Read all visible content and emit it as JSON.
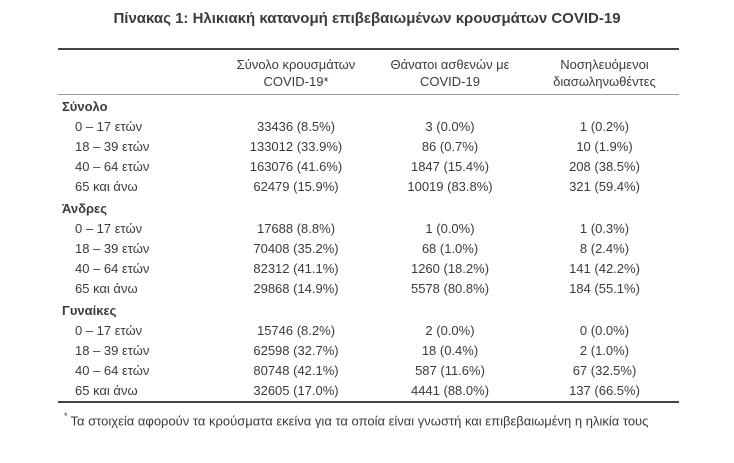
{
  "title": "Πίνακας 1: Ηλικιακή κατανομή επιβεβαιωμένων κρουσμάτων COVID-19",
  "table": {
    "headers": {
      "cases": {
        "line1": "Σύνολο κρουσμάτων",
        "line2": "COVID-19*"
      },
      "deaths": {
        "line1": "Θάνατοι ασθενών με",
        "line2": "COVID-19"
      },
      "intubated": {
        "line1": "Νοσηλευόμενοι",
        "line2": "διασωληνωθέντες"
      }
    },
    "sections": [
      {
        "label": "Σύνολο",
        "rows": [
          {
            "age": "0 – 17 ετών",
            "cases": "33436 (8.5%)",
            "deaths": "3 (0.0%)",
            "intubated": "1 (0.2%)"
          },
          {
            "age": "18 – 39 ετών",
            "cases": "133012 (33.9%)",
            "deaths": "86 (0.7%)",
            "intubated": "10 (1.9%)"
          },
          {
            "age": "40 – 64 ετών",
            "cases": "163076 (41.6%)",
            "deaths": "1847 (15.4%)",
            "intubated": "208 (38.5%)"
          },
          {
            "age": "65 και άνω",
            "cases": "62479 (15.9%)",
            "deaths": "10019 (83.8%)",
            "intubated": "321 (59.4%)"
          }
        ]
      },
      {
        "label": "Άνδρες",
        "rows": [
          {
            "age": "0 – 17 ετών",
            "cases": "17688 (8.8%)",
            "deaths": "1 (0.0%)",
            "intubated": "1 (0.3%)"
          },
          {
            "age": "18 – 39 ετών",
            "cases": "70408 (35.2%)",
            "deaths": "68 (1.0%)",
            "intubated": "8 (2.4%)"
          },
          {
            "age": "40 – 64 ετών",
            "cases": "82312 (41.1%)",
            "deaths": "1260 (18.2%)",
            "intubated": "141 (42.2%)"
          },
          {
            "age": "65 και άνω",
            "cases": "29868 (14.9%)",
            "deaths": "5578 (80.8%)",
            "intubated": "184 (55.1%)"
          }
        ]
      },
      {
        "label": "Γυναίκες",
        "rows": [
          {
            "age": "0 – 17 ετών",
            "cases": "15746 (8.2%)",
            "deaths": "2 (0.0%)",
            "intubated": "0 (0.0%)"
          },
          {
            "age": "18 – 39 ετών",
            "cases": "62598 (32.7%)",
            "deaths": "18 (0.4%)",
            "intubated": "2 (1.0%)"
          },
          {
            "age": "40 – 64 ετών",
            "cases": "80748 (42.1%)",
            "deaths": "587 (11.6%)",
            "intubated": "67 (32.5%)"
          },
          {
            "age": "65 και άνω",
            "cases": "32605 (17.0%)",
            "deaths": "4441 (88.0%)",
            "intubated": "137 (66.5%)"
          }
        ]
      }
    ]
  },
  "footnote_marker": "*",
  "footnote": "Τα στοιχεία αφορούν τα κρούσματα εκείνα για τα οποία είναι γνωστή και επιβεβαιωμένη η ηλικία τους"
}
